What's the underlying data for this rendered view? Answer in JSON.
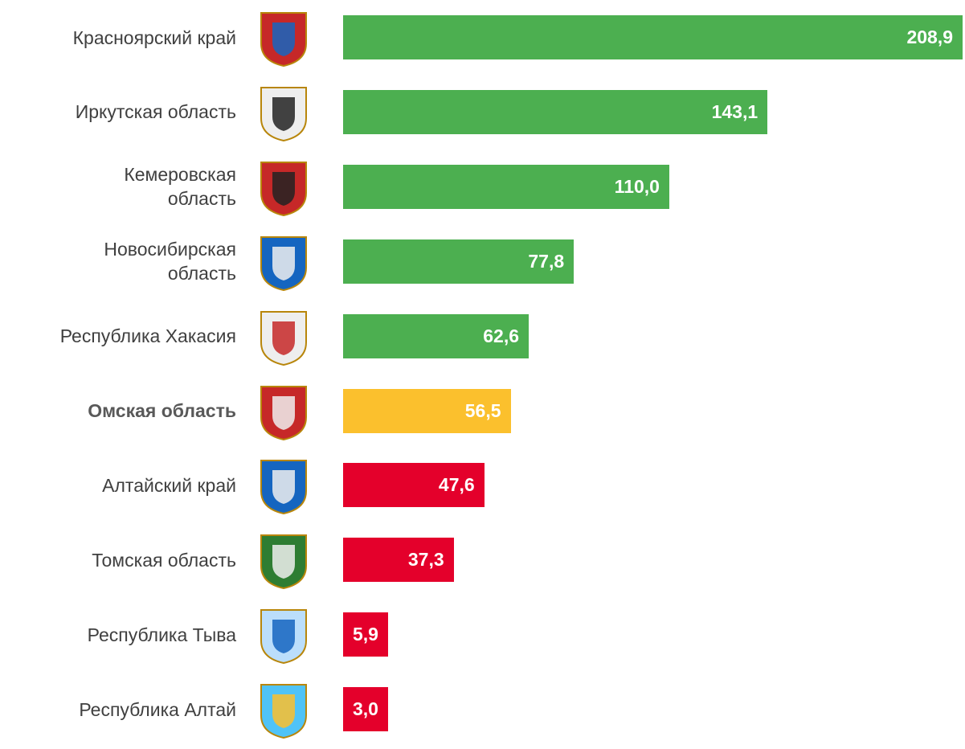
{
  "chart_data": {
    "type": "bar",
    "orientation": "horizontal",
    "categories": [
      "Красноярский край",
      "Иркутская область",
      "Кемеровская\nобласть",
      "Новосибирская\nобласть",
      "Республика Хакасия",
      "Омская область",
      "Алтайский край",
      "Томская область",
      "Республика Тыва",
      "Республика Алтай"
    ],
    "values": [
      208.9,
      143.1,
      110.0,
      77.8,
      62.6,
      56.5,
      47.6,
      37.3,
      5.9,
      3.0
    ],
    "value_labels": [
      "208,9",
      "143,1",
      "110,0",
      "77,8",
      "62,6",
      "56,5",
      "47,6",
      "37,3",
      "5,9",
      "3,0"
    ],
    "colors": [
      "#4caf50",
      "#4caf50",
      "#4caf50",
      "#4caf50",
      "#4caf50",
      "#fbc02d",
      "#e4002b",
      "#e4002b",
      "#e4002b",
      "#e4002b"
    ],
    "highlight": 5
  }
}
